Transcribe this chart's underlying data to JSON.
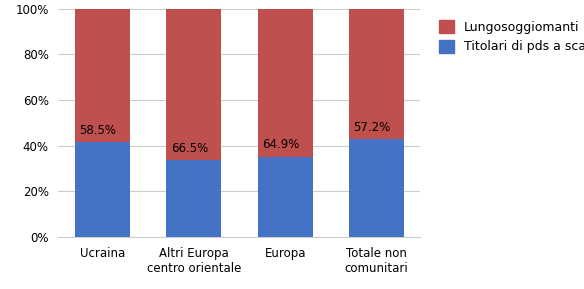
{
  "categories": [
    "Ucraina",
    "Altri Europa\ncentro orientale",
    "Europa",
    "Totale non\ncomunitari"
  ],
  "blue_values": [
    41.5,
    33.5,
    35.1,
    42.8
  ],
  "red_values": [
    58.5,
    66.5,
    64.9,
    57.2
  ],
  "red_labels": [
    "58.5%",
    "66.5%",
    "64.9%",
    "57.2%"
  ],
  "blue_color": "#4472C4",
  "red_color": "#C0504D",
  "legend_labels": [
    "Lungosoggiomanti",
    "Titolari di pds a scadenza"
  ],
  "ylim": [
    0,
    100
  ],
  "yticks": [
    0,
    20,
    40,
    60,
    80,
    100
  ],
  "ytick_labels": [
    "0%",
    "20%",
    "40%",
    "60%",
    "80%",
    "100%"
  ],
  "background_color": "#FFFFFF",
  "grid_color": "#CCCCCC",
  "label_fontsize": 8.5,
  "tick_fontsize": 8.5,
  "legend_fontsize": 9,
  "bar_width": 0.6
}
